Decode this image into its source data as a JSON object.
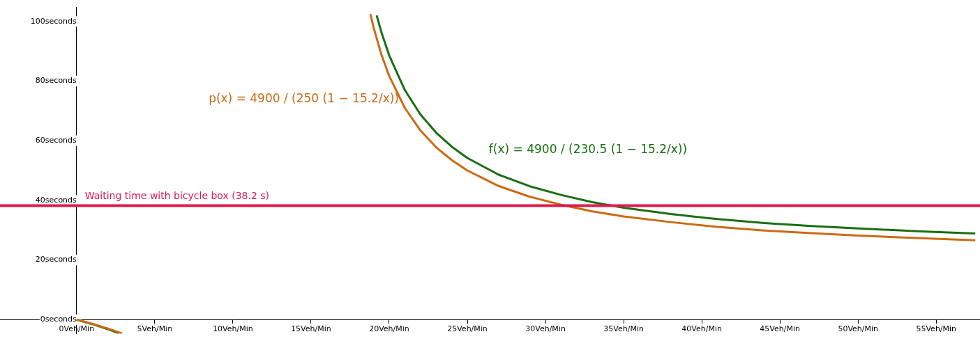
{
  "chart_data": {
    "type": "line",
    "xlim": [
      -4.9,
      57.8
    ],
    "ylim": [
      -4.7,
      104.7
    ],
    "xticks": [
      {
        "value": 0,
        "label": "0Veh/Min"
      },
      {
        "value": 5,
        "label": "5Veh/Min"
      },
      {
        "value": 10,
        "label": "10Veh/Min"
      },
      {
        "value": 15,
        "label": "15Veh/Min"
      },
      {
        "value": 20,
        "label": "20Veh/Min"
      },
      {
        "value": 25,
        "label": "25Veh/Min"
      },
      {
        "value": 30,
        "label": "30Veh/Min"
      },
      {
        "value": 35,
        "label": "35Veh/Min"
      },
      {
        "value": 40,
        "label": "40Veh/Min"
      },
      {
        "value": 45,
        "label": "45Veh/Min"
      },
      {
        "value": 50,
        "label": "50Veh/Min"
      },
      {
        "value": 55,
        "label": "55Veh/Min"
      }
    ],
    "yticks": [
      {
        "value": 0,
        "label": "0seconds"
      },
      {
        "value": 20,
        "label": "20seconds"
      },
      {
        "value": 40,
        "label": "40seconds"
      },
      {
        "value": 60,
        "label": "60seconds"
      },
      {
        "value": 80,
        "label": "80seconds"
      },
      {
        "value": 100,
        "label": "100seconds"
      }
    ],
    "grid": false,
    "legend": false,
    "marker": "none",
    "line_style": "solid",
    "series": [
      {
        "color": "#cc6a14",
        "x": [
          0,
          1,
          2,
          2.9,
          10,
          18.8,
          19,
          19.5,
          20,
          21,
          22,
          23,
          24,
          25,
          27,
          29,
          31,
          33,
          35,
          38,
          41,
          44,
          47,
          50,
          54,
          57.5
        ],
        "values": [
          0,
          -1.4,
          -3.0,
          -4.6,
          null,
          102.4,
          98.0,
          88.9,
          81.7,
          71.0,
          63.4,
          57.8,
          53.5,
          50.0,
          44.8,
          41.2,
          38.5,
          36.3,
          34.6,
          32.7,
          31.1,
          29.9,
          29.0,
          28.2,
          27.3,
          26.6
        ]
      },
      {
        "color": "#1a6e12",
        "x": [
          0,
          1,
          2,
          2.7,
          10,
          19.2,
          19.5,
          20,
          21,
          22,
          23,
          24,
          25,
          27,
          29,
          31,
          33,
          35,
          38,
          41,
          44,
          47,
          50,
          54,
          57.5
        ],
        "values": [
          0,
          -1.5,
          -3.2,
          -4.6,
          null,
          102.0,
          96.4,
          88.6,
          77.0,
          68.8,
          62.7,
          58.0,
          54.2,
          48.6,
          44.7,
          41.8,
          39.4,
          37.5,
          35.4,
          33.7,
          32.4,
          31.4,
          30.6,
          29.6,
          28.9
        ]
      }
    ],
    "ref_lines": [
      {
        "axis": "y",
        "value": 38.2,
        "label": "Waiting time with bicycle box (38.2 s)",
        "color": "#dc1a4c"
      }
    ],
    "annotations": [
      "p(x) = 4900 / (250 (1 − 15.2/x))",
      "f(x) = 4900 / (230.5 (1 − 15.2/x))"
    ]
  }
}
